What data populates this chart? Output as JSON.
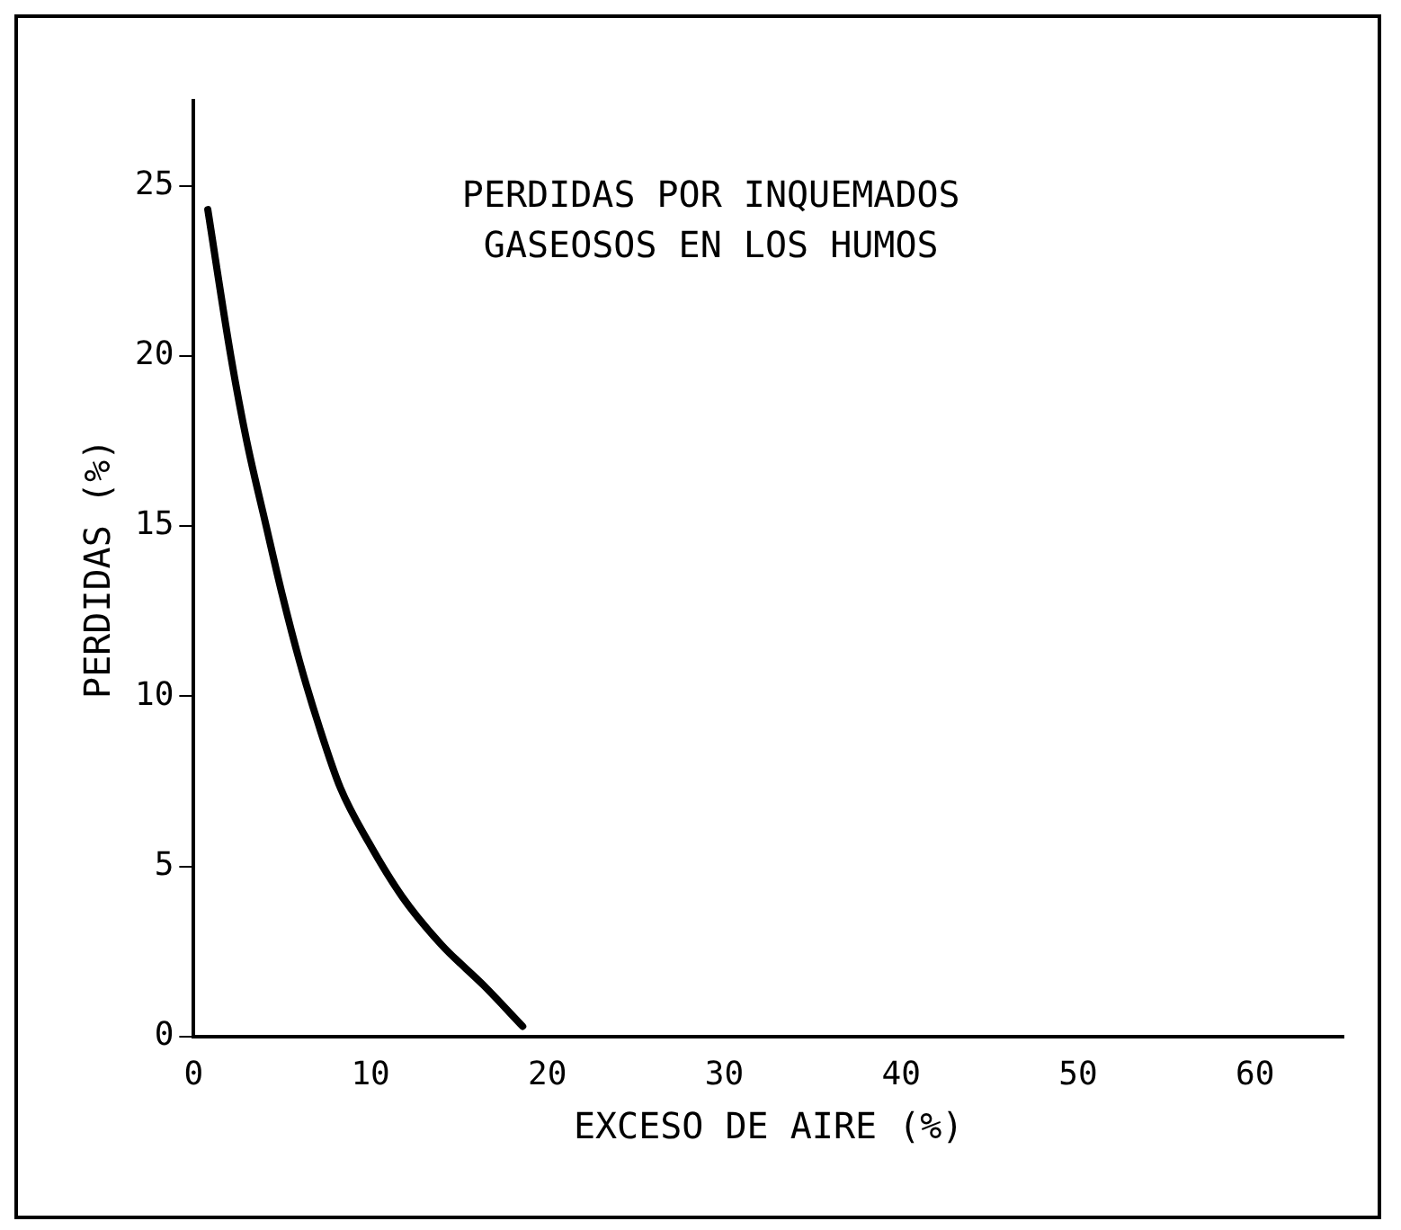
{
  "chart_data": {
    "type": "line",
    "xlabel": "EXCESO DE AIRE (%)",
    "ylabel": "PERDIDAS (%)",
    "annotations": [
      "PERDIDAS POR INQUEMADOS\nGASEOSOS EN LOS HUMOS"
    ],
    "x": [
      0.8,
      2.1,
      3.0,
      4.1,
      5.0,
      6.0,
      7.1,
      8.3,
      9.9,
      11.8,
      14.0,
      16.4,
      18.6
    ],
    "series": [
      {
        "color": "#000000",
        "values": [
          24.3,
          20.0,
          17.5,
          15.0,
          13.0,
          11.0,
          9.1,
          7.3,
          5.7,
          4.1,
          2.7,
          1.5,
          0.3
        ]
      }
    ],
    "xlim": [
      0,
      65
    ],
    "xticks": [
      0,
      10,
      20,
      30,
      40,
      50,
      60
    ],
    "ylim": [
      0,
      27.5
    ],
    "yticks": [
      0,
      5,
      10,
      15,
      20,
      25
    ],
    "grid": false,
    "legend": false,
    "marker": "none",
    "line_style": "solid"
  }
}
